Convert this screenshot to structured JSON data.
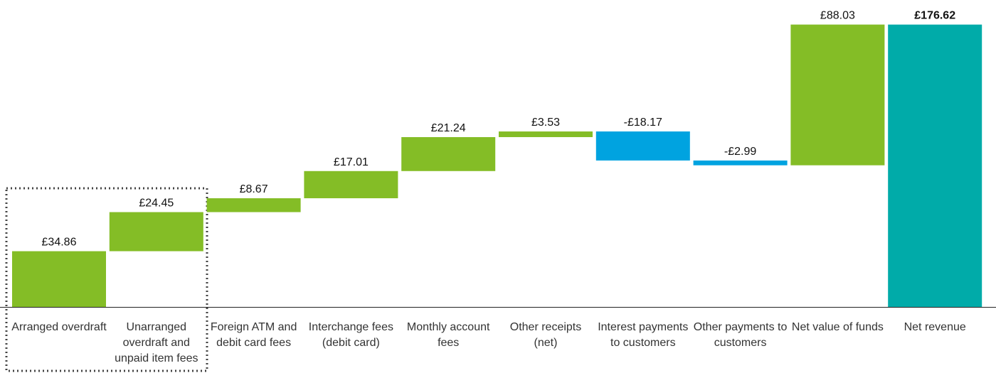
{
  "chart_data": {
    "type": "waterfall",
    "categories": [
      "Arranged overdraft",
      "Unarranged overdraft and unpaid item fees",
      "Foreign ATM and debit card fees",
      "Interchange fees (debit card)",
      "Monthly account fees",
      "Other receipts (net)",
      "Interest payments to customers",
      "Other payments to customers",
      "Net value of funds",
      "Net revenue"
    ],
    "values": [
      34.86,
      24.45,
      8.67,
      17.01,
      21.24,
      3.53,
      -18.17,
      -2.99,
      88.03,
      176.62
    ],
    "value_labels": [
      "£34.86",
      "£24.45",
      "£8.67",
      "£17.01",
      "£21.24",
      "£3.53",
      "-£18.17",
      "-£2.99",
      "£88.03",
      "£176.62"
    ],
    "is_total": [
      false,
      false,
      false,
      false,
      false,
      false,
      false,
      false,
      false,
      true
    ],
    "colors": [
      "#84bd26",
      "#84bd26",
      "#84bd26",
      "#84bd26",
      "#84bd26",
      "#84bd26",
      "#00a3e0",
      "#00a3e0",
      "#84bd26",
      "#00aba9"
    ],
    "ylim": [
      0,
      180
    ]
  }
}
